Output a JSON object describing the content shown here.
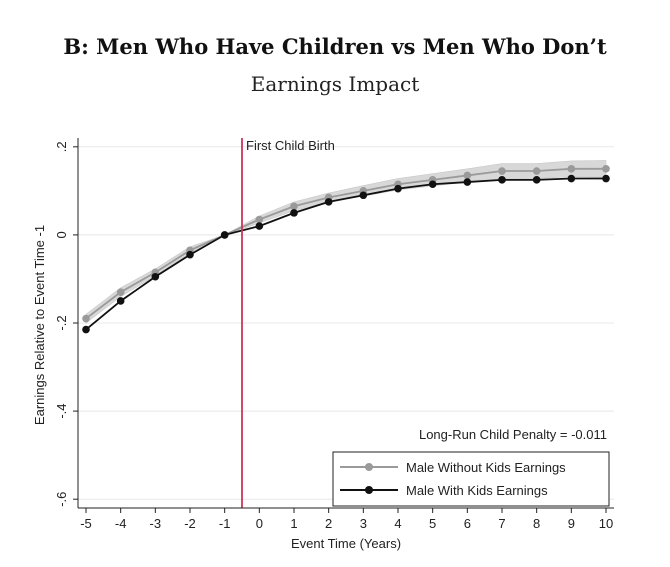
{
  "chart_data": {
    "type": "line",
    "title": "B: Men Who Have Children vs Men Who Don’t",
    "subtitle": "Earnings Impact",
    "xlabel": "Event Time (Years)",
    "ylabel": "Earnings Relative to Event Time -1",
    "x": [
      -5,
      -4,
      -3,
      -2,
      -1,
      0,
      1,
      2,
      3,
      4,
      5,
      6,
      7,
      8,
      9,
      10
    ],
    "xticks": [
      "-5",
      "-4",
      "-3",
      "-2",
      "-1",
      "0",
      "1",
      "2",
      "3",
      "4",
      "5",
      "6",
      "7",
      "8",
      "9",
      "10"
    ],
    "xlim": [
      -5,
      10
    ],
    "yticks": [
      "-.6",
      "-.4",
      "-.2",
      "0",
      ".2"
    ],
    "ytick_values": [
      -0.6,
      -0.4,
      -0.2,
      0,
      0.2
    ],
    "ylim": [
      -0.62,
      0.22
    ],
    "series": [
      {
        "name": "Male Without Kids Earnings",
        "color": "#9a9a9a",
        "values": [
          -0.19,
          -0.13,
          -0.085,
          -0.035,
          0.0,
          0.035,
          0.065,
          0.085,
          0.1,
          0.115,
          0.125,
          0.135,
          0.145,
          0.145,
          0.15,
          0.15
        ],
        "ci_lower": [
          -0.2,
          -0.14,
          -0.093,
          -0.043,
          0.0,
          0.027,
          0.055,
          0.075,
          0.088,
          0.102,
          0.111,
          0.12,
          0.128,
          0.128,
          0.132,
          0.131
        ],
        "ci_upper": [
          -0.18,
          -0.12,
          -0.077,
          -0.027,
          0.0,
          0.043,
          0.075,
          0.095,
          0.112,
          0.128,
          0.139,
          0.15,
          0.162,
          0.162,
          0.168,
          0.169
        ]
      },
      {
        "name": "Male With Kids Earnings",
        "color": "#111111",
        "values": [
          -0.215,
          -0.15,
          -0.095,
          -0.045,
          0.0,
          0.02,
          0.05,
          0.075,
          0.09,
          0.105,
          0.115,
          0.12,
          0.125,
          0.125,
          0.128,
          0.128
        ]
      }
    ],
    "vline": {
      "x": -0.5,
      "label": "First Child Birth",
      "color": "#c8385a"
    },
    "annotation": "Long-Run Child Penalty = -0.011",
    "legend_position": "bottom-right",
    "grid": true
  }
}
